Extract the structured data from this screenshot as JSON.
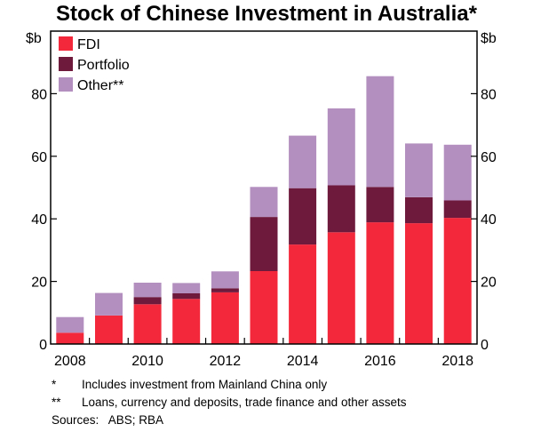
{
  "chart_data": {
    "type": "bar",
    "stacked": true,
    "title": "Stock of Chinese Investment in Australia*",
    "ylabel_left": "$b",
    "ylabel_right": "$b",
    "ylim": [
      0,
      100
    ],
    "yticks": [
      0,
      20,
      40,
      60,
      80
    ],
    "xticks": [
      "2008",
      "2010",
      "2012",
      "2014",
      "2016",
      "2018"
    ],
    "categories": [
      "2008",
      "2009",
      "2010",
      "2011",
      "2012",
      "2013",
      "2014",
      "2015",
      "2016",
      "2017",
      "2018"
    ],
    "series": [
      {
        "name": "FDI",
        "color": "#f4283b",
        "values": [
          3.6,
          9.1,
          12.7,
          14.4,
          16.5,
          23.3,
          31.8,
          35.7,
          38.9,
          38.6,
          40.3
        ]
      },
      {
        "name": "Portfolio",
        "color": "#6e1a3d",
        "values": [
          0,
          0,
          2.3,
          1.8,
          1.3,
          17.3,
          18.0,
          15.0,
          11.3,
          8.3,
          5.6
        ]
      },
      {
        "name": "Other**",
        "color": "#b28fbe",
        "values": [
          5.0,
          7.2,
          4.6,
          3.3,
          5.4,
          9.6,
          16.8,
          24.6,
          35.4,
          17.2,
          17.8
        ]
      }
    ],
    "legend": "top-left",
    "grid": false
  },
  "notes": [
    {
      "mark": "*",
      "text": "Includes investment from Mainland China only"
    },
    {
      "mark": "**",
      "text": "Loans, currency and deposits, trade finance and other assets"
    }
  ],
  "sources": "Sources:   ABS; RBA"
}
